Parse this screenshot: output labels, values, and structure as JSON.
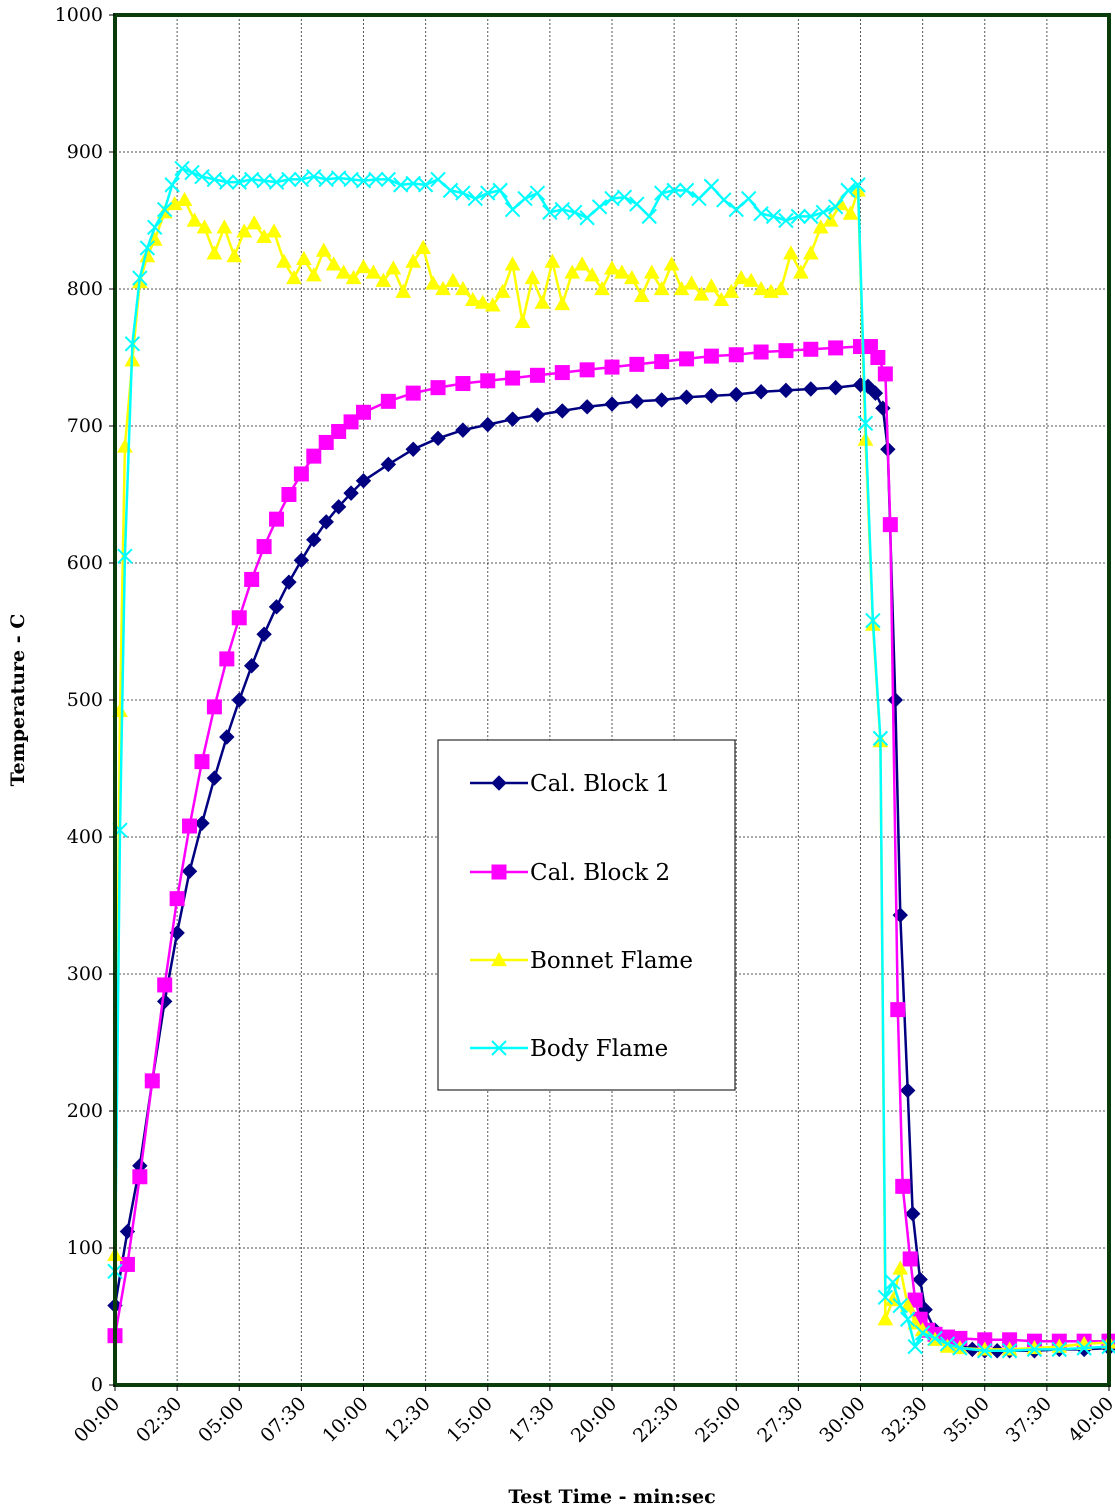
{
  "chart_data": {
    "type": "line",
    "xlabel": "Test Time - min:sec",
    "ylabel": "Temperature - C",
    "xlim": [
      0,
      40
    ],
    "ylim": [
      0,
      1000
    ],
    "x_ticks": [
      0,
      2.5,
      5,
      7.5,
      10,
      12.5,
      15,
      17.5,
      20,
      22.5,
      25,
      27.5,
      30,
      32.5,
      35,
      37.5,
      40
    ],
    "x_tick_labels": [
      "00:00",
      "02:30",
      "05:00",
      "07:30",
      "10:00",
      "12:30",
      "15:00",
      "17:30",
      "20:00",
      "22:30",
      "25:00",
      "27:30",
      "30:00",
      "32:30",
      "35:00",
      "37:30",
      "40:00"
    ],
    "y_ticks": [
      0,
      100,
      200,
      300,
      400,
      500,
      600,
      700,
      800,
      900,
      1000
    ],
    "y_tick_labels": [
      "0",
      "100",
      "200",
      "300",
      "400",
      "500",
      "600",
      "700",
      "800",
      "900",
      "1000"
    ],
    "grid": true,
    "legend_position": "center",
    "series": [
      {
        "name": "Cal. Block 1",
        "color": "#000080",
        "marker": "diamond",
        "points": [
          [
            0,
            58
          ],
          [
            0.5,
            112
          ],
          [
            1,
            160
          ],
          [
            1.5,
            222
          ],
          [
            2,
            280
          ],
          [
            2.5,
            330
          ],
          [
            3,
            375
          ],
          [
            3.5,
            410
          ],
          [
            4,
            443
          ],
          [
            4.5,
            473
          ],
          [
            5,
            500
          ],
          [
            5.5,
            525
          ],
          [
            6,
            548
          ],
          [
            6.5,
            568
          ],
          [
            7,
            586
          ],
          [
            7.5,
            602
          ],
          [
            8,
            617
          ],
          [
            8.5,
            630
          ],
          [
            9,
            641
          ],
          [
            9.5,
            651
          ],
          [
            10,
            660
          ],
          [
            11,
            672
          ],
          [
            12,
            683
          ],
          [
            13,
            691
          ],
          [
            14,
            697
          ],
          [
            15,
            701
          ],
          [
            16,
            705
          ],
          [
            17,
            708
          ],
          [
            18,
            711
          ],
          [
            19,
            714
          ],
          [
            20,
            716
          ],
          [
            21,
            718
          ],
          [
            22,
            719
          ],
          [
            23,
            721
          ],
          [
            24,
            722
          ],
          [
            25,
            723
          ],
          [
            26,
            725
          ],
          [
            27,
            726
          ],
          [
            28,
            727
          ],
          [
            29,
            728
          ],
          [
            30,
            730
          ],
          [
            30.3,
            729
          ],
          [
            30.6,
            724
          ],
          [
            30.9,
            713
          ],
          [
            31.1,
            683
          ],
          [
            31.4,
            500
          ],
          [
            31.6,
            343
          ],
          [
            31.9,
            215
          ],
          [
            32.1,
            125
          ],
          [
            32.4,
            77
          ],
          [
            32.6,
            55
          ],
          [
            33,
            40
          ],
          [
            33.5,
            32
          ],
          [
            34,
            28
          ],
          [
            34.5,
            26
          ],
          [
            35,
            25
          ],
          [
            35.5,
            25
          ],
          [
            36,
            25
          ],
          [
            37,
            25
          ],
          [
            38,
            26
          ],
          [
            39,
            26
          ],
          [
            40,
            27
          ]
        ]
      },
      {
        "name": "Cal. Block 2",
        "color": "#ff00ff",
        "marker": "square",
        "points": [
          [
            0,
            36
          ],
          [
            0.5,
            88
          ],
          [
            1,
            152
          ],
          [
            1.5,
            222
          ],
          [
            2,
            292
          ],
          [
            2.5,
            355
          ],
          [
            3,
            408
          ],
          [
            3.5,
            455
          ],
          [
            4,
            495
          ],
          [
            4.5,
            530
          ],
          [
            5,
            560
          ],
          [
            5.5,
            588
          ],
          [
            6,
            612
          ],
          [
            6.5,
            632
          ],
          [
            7,
            650
          ],
          [
            7.5,
            665
          ],
          [
            8,
            678
          ],
          [
            8.5,
            688
          ],
          [
            9,
            696
          ],
          [
            9.5,
            703
          ],
          [
            10,
            710
          ],
          [
            11,
            718
          ],
          [
            12,
            724
          ],
          [
            13,
            728
          ],
          [
            14,
            731
          ],
          [
            15,
            733
          ],
          [
            16,
            735
          ],
          [
            17,
            737
          ],
          [
            18,
            739
          ],
          [
            19,
            741
          ],
          [
            20,
            743
          ],
          [
            21,
            745
          ],
          [
            22,
            747
          ],
          [
            23,
            749
          ],
          [
            24,
            751
          ],
          [
            25,
            752
          ],
          [
            26,
            754
          ],
          [
            27,
            755
          ],
          [
            28,
            756
          ],
          [
            29,
            757
          ],
          [
            30,
            758
          ],
          [
            30.4,
            758
          ],
          [
            30.7,
            750
          ],
          [
            31,
            738
          ],
          [
            31.2,
            628
          ],
          [
            31.5,
            274
          ],
          [
            31.7,
            145
          ],
          [
            32,
            92
          ],
          [
            32.2,
            62
          ],
          [
            32.4,
            48
          ],
          [
            32.7,
            40
          ],
          [
            33,
            37
          ],
          [
            33.5,
            35
          ],
          [
            34,
            34
          ],
          [
            35,
            33
          ],
          [
            36,
            33
          ],
          [
            37,
            32
          ],
          [
            38,
            32
          ],
          [
            39,
            32
          ],
          [
            40,
            32
          ]
        ]
      },
      {
        "name": "Bonnet Flame",
        "color": "#ffff00",
        "marker": "triangle",
        "points": [
          [
            0,
            95
          ],
          [
            0.2,
            492
          ],
          [
            0.4,
            685
          ],
          [
            0.7,
            748
          ],
          [
            1,
            805
          ],
          [
            1.3,
            824
          ],
          [
            1.6,
            836
          ],
          [
            2,
            856
          ],
          [
            2.4,
            862
          ],
          [
            2.8,
            865
          ],
          [
            3.2,
            850
          ],
          [
            3.6,
            845
          ],
          [
            4,
            826
          ],
          [
            4.4,
            845
          ],
          [
            4.8,
            824
          ],
          [
            5.2,
            842
          ],
          [
            5.6,
            848
          ],
          [
            6,
            838
          ],
          [
            6.4,
            842
          ],
          [
            6.8,
            820
          ],
          [
            7.2,
            808
          ],
          [
            7.6,
            822
          ],
          [
            8,
            810
          ],
          [
            8.4,
            828
          ],
          [
            8.8,
            818
          ],
          [
            9.2,
            812
          ],
          [
            9.6,
            808
          ],
          [
            10,
            816
          ],
          [
            10.4,
            812
          ],
          [
            10.8,
            806
          ],
          [
            11.2,
            815
          ],
          [
            11.6,
            798
          ],
          [
            12,
            820
          ],
          [
            12.4,
            830
          ],
          [
            12.8,
            804
          ],
          [
            13.2,
            800
          ],
          [
            13.6,
            806
          ],
          [
            14,
            800
          ],
          [
            14.4,
            792
          ],
          [
            14.8,
            790
          ],
          [
            15.2,
            788
          ],
          [
            15.6,
            798
          ],
          [
            16,
            818
          ],
          [
            16.4,
            776
          ],
          [
            16.8,
            808
          ],
          [
            17.2,
            790
          ],
          [
            17.6,
            820
          ],
          [
            18,
            789
          ],
          [
            18.4,
            812
          ],
          [
            18.8,
            818
          ],
          [
            19.2,
            810
          ],
          [
            19.6,
            800
          ],
          [
            20,
            815
          ],
          [
            20.4,
            812
          ],
          [
            20.8,
            808
          ],
          [
            21.2,
            795
          ],
          [
            21.6,
            812
          ],
          [
            22,
            800
          ],
          [
            22.4,
            818
          ],
          [
            22.8,
            800
          ],
          [
            23.2,
            804
          ],
          [
            23.6,
            796
          ],
          [
            24,
            802
          ],
          [
            24.4,
            792
          ],
          [
            24.8,
            798
          ],
          [
            25.2,
            808
          ],
          [
            25.6,
            806
          ],
          [
            26,
            800
          ],
          [
            26.4,
            798
          ],
          [
            26.8,
            800
          ],
          [
            27.2,
            826
          ],
          [
            27.6,
            812
          ],
          [
            28,
            826
          ],
          [
            28.4,
            845
          ],
          [
            28.8,
            850
          ],
          [
            29.2,
            862
          ],
          [
            29.6,
            855
          ],
          [
            29.9,
            872
          ],
          [
            30.2,
            690
          ],
          [
            30.5,
            555
          ],
          [
            30.8,
            470
          ],
          [
            31,
            48
          ],
          [
            31.3,
            62
          ],
          [
            31.6,
            85
          ],
          [
            31.9,
            58
          ],
          [
            32.2,
            45
          ],
          [
            32.5,
            40
          ],
          [
            33,
            33
          ],
          [
            33.5,
            28
          ],
          [
            34,
            27
          ],
          [
            35,
            26
          ],
          [
            36,
            26
          ],
          [
            37,
            27
          ],
          [
            38,
            28
          ],
          [
            39,
            30
          ],
          [
            40,
            31
          ]
        ]
      },
      {
        "name": "Body Flame",
        "color": "#00ffff",
        "marker": "x",
        "points": [
          [
            0,
            83
          ],
          [
            0.2,
            405
          ],
          [
            0.4,
            605
          ],
          [
            0.7,
            760
          ],
          [
            1,
            808
          ],
          [
            1.3,
            830
          ],
          [
            1.6,
            845
          ],
          [
            2,
            858
          ],
          [
            2.3,
            876
          ],
          [
            2.7,
            888
          ],
          [
            3.1,
            885
          ],
          [
            3.5,
            882
          ],
          [
            4,
            880
          ],
          [
            4.5,
            878
          ],
          [
            5,
            878
          ],
          [
            5.5,
            880
          ],
          [
            6,
            879
          ],
          [
            6.5,
            878
          ],
          [
            7,
            880
          ],
          [
            7.5,
            880
          ],
          [
            8,
            882
          ],
          [
            8.5,
            880
          ],
          [
            9,
            881
          ],
          [
            9.5,
            880
          ],
          [
            10,
            879
          ],
          [
            10.5,
            880
          ],
          [
            11,
            880
          ],
          [
            11.5,
            876
          ],
          [
            12,
            877
          ],
          [
            12.5,
            876
          ],
          [
            13,
            880
          ],
          [
            13.5,
            872
          ],
          [
            14,
            870
          ],
          [
            14.5,
            866
          ],
          [
            15,
            870
          ],
          [
            15.5,
            872
          ],
          [
            16,
            858
          ],
          [
            16.5,
            866
          ],
          [
            17,
            870
          ],
          [
            17.5,
            856
          ],
          [
            18,
            858
          ],
          [
            18.5,
            856
          ],
          [
            19,
            852
          ],
          [
            19.5,
            860
          ],
          [
            20,
            866
          ],
          [
            20.5,
            867
          ],
          [
            21,
            862
          ],
          [
            21.5,
            853
          ],
          [
            22,
            870
          ],
          [
            22.5,
            872
          ],
          [
            23,
            872
          ],
          [
            23.5,
            866
          ],
          [
            24,
            875
          ],
          [
            24.5,
            865
          ],
          [
            25,
            858
          ],
          [
            25.5,
            866
          ],
          [
            26,
            855
          ],
          [
            26.5,
            853
          ],
          [
            27,
            850
          ],
          [
            27.5,
            853
          ],
          [
            28,
            853
          ],
          [
            28.5,
            856
          ],
          [
            29,
            860
          ],
          [
            29.5,
            872
          ],
          [
            29.9,
            876
          ],
          [
            30.2,
            702
          ],
          [
            30.5,
            558
          ],
          [
            30.8,
            472
          ],
          [
            31,
            64
          ],
          [
            31.3,
            75
          ],
          [
            31.6,
            58
          ],
          [
            31.9,
            48
          ],
          [
            32.2,
            28
          ],
          [
            32.5,
            38
          ],
          [
            33,
            34
          ],
          [
            33.5,
            30
          ],
          [
            34,
            27
          ],
          [
            35,
            25
          ],
          [
            36,
            25
          ],
          [
            37,
            26
          ],
          [
            38,
            26
          ],
          [
            39,
            27
          ],
          [
            40,
            28
          ]
        ]
      }
    ]
  }
}
